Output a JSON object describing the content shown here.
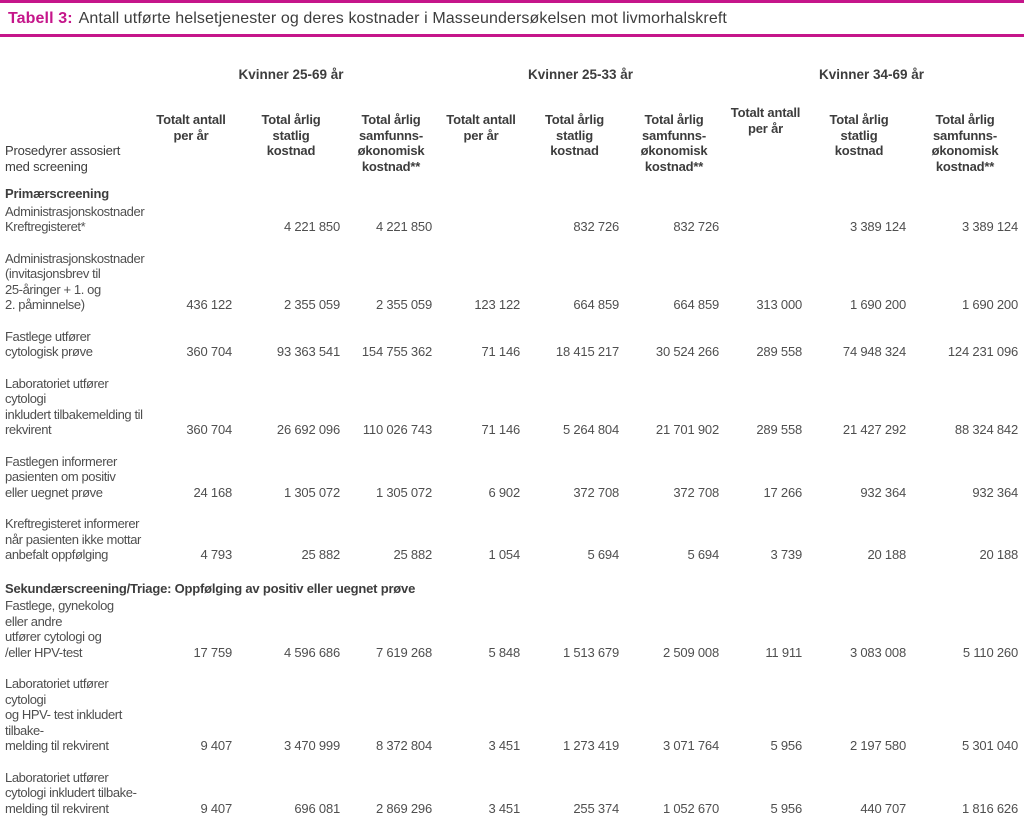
{
  "title": {
    "prefix": "Tabell 3:",
    "text": "Antall utførte helsetjenester og deres kostnader i Masseundersøkelsen mot livmorhalskreft"
  },
  "colors": {
    "accent": "#c5158a",
    "heading_text": "#3d3d3d",
    "body_text": "#4f4f4f"
  },
  "table": {
    "row_header": "Prosedyrer assosiert\nmed screening",
    "groups": [
      "Kvinner 25-69 år",
      "Kvinner 25-33 år",
      "Kvinner 34-69 år"
    ],
    "columns": [
      "Totalt antall\nper år",
      "Total årlig\nstatlig\nkostnad",
      "Total årlig\nsamfunns-\nøkonomisk\nkostnad**",
      "Totalt antall\nper år",
      "Total årlig\nstatlig\nkostnad",
      "Total årlig\nsamfunns-\nøkonomisk\nkostnad**",
      "Totalt antall\nper år",
      "Total årlig\nstatlig\nkostnad",
      "Total årlig\nsamfunns-\nøkonomisk\nkostnad**"
    ],
    "sections": [
      {
        "header": "Primærscreening",
        "rows": [
          {
            "label": "Administrasjonskostnader\nKreftregisteret*",
            "values": [
              "",
              "4 221 850",
              "4 221 850",
              "",
              "832 726",
              "832 726",
              "",
              "3 389 124",
              "3 389 124"
            ]
          },
          {
            "label": "Administrasjonskostnader\n(invitasjonsbrev til\n25-åringer + 1. og\n2. påminnelse)",
            "values": [
              "436 122",
              "2 355 059",
              "2 355 059",
              "123 122",
              "664 859",
              "664 859",
              "313 000",
              "1 690 200",
              "1 690 200"
            ]
          },
          {
            "label": "Fastlege utfører\ncytologisk prøve",
            "values": [
              "360 704",
              "93 363 541",
              "154 755 362",
              "71 146",
              "18 415 217",
              "30 524 266",
              "289 558",
              "74 948 324",
              "124 231 096"
            ]
          },
          {
            "label": "Laboratoriet  utfører cytologi\ninkludert tilbakemelding til\nrekvirent",
            "values": [
              "360 704",
              "26 692 096",
              "110 026 743",
              "71 146",
              "5 264 804",
              "21 701 902",
              "289 558",
              "21 427 292",
              "88 324 842"
            ]
          },
          {
            "label": "Fastlegen informerer\npasienten om positiv\neller uegnet prøve",
            "values": [
              "24 168",
              "1 305 072",
              "1 305 072",
              "6 902",
              "372 708",
              "372 708",
              "17 266",
              "932 364",
              "932 364"
            ]
          },
          {
            "label": "Kreftregisteret informerer\nnår pasienten ikke mottar\nanbefalt oppfølging",
            "values": [
              "4 793",
              "25 882",
              "25 882",
              "1 054",
              "5 694",
              "5 694",
              "3 739",
              "20 188",
              "20 188"
            ]
          }
        ]
      },
      {
        "header": "Sekundærscreening/Triage: Oppfølging av positiv eller uegnet prøve",
        "rows": [
          {
            "label": "Fastlege, gynekolog\neller andre\nutfører cytologi og\n/eller HPV-test",
            "values": [
              "17 759",
              "4 596 686",
              "7 619 268",
              "5 848",
              "1 513 679",
              "2 509 008",
              "11 911",
              "3 083 008",
              "5 110 260"
            ]
          },
          {
            "label": "Laboratoriet utfører cytologi\nog HPV- test inkludert tilbake-\nmelding til rekvirent",
            "values": [
              "9 407",
              "3 470 999",
              "8 372 804",
              "3 451",
              "1 273 419",
              "3 071 764",
              "5 956",
              "2 197 580",
              "5 301 040"
            ]
          },
          {
            "label": "Laboratoriet  utfører\ncytologi inkludert tilbake-\nmelding til rekvirent",
            "values": [
              "9 407",
              "696 081",
              "2 869 296",
              "3 451",
              "255 374",
              "1 052 670",
              "5 956",
              "440 707",
              "1 816 626"
            ]
          }
        ]
      }
    ]
  }
}
